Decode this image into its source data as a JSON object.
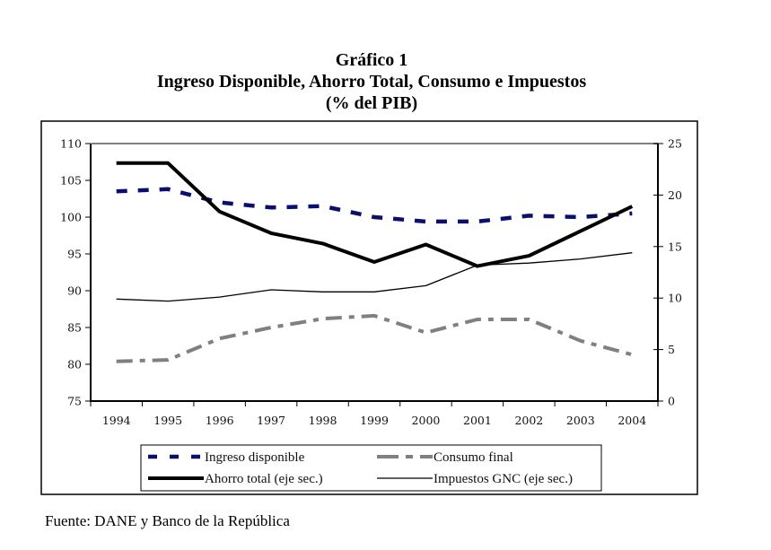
{
  "chart_data": {
    "type": "line",
    "title": "Gráfico 1",
    "subtitle": "Ingreso Disponible, Ahorro Total, Consumo e Impuestos",
    "unit_label": "(% del PIB)",
    "xlabel": "",
    "ylabel": "",
    "categories": [
      "1994",
      "1995",
      "1996",
      "1997",
      "1998",
      "1999",
      "2000",
      "2001",
      "2002",
      "2003",
      "2004"
    ],
    "y_left": {
      "range": [
        75,
        110
      ],
      "ticks": [
        75,
        80,
        85,
        90,
        95,
        100,
        105,
        110
      ]
    },
    "y_right": {
      "range": [
        0,
        25
      ],
      "ticks": [
        0,
        5,
        10,
        15,
        20,
        25
      ]
    },
    "grid": false,
    "legend_position": "bottom",
    "series": [
      {
        "name": "Ingreso disponible",
        "axis": "left",
        "style": "dash",
        "color": "#0b0f6b",
        "values": [
          103.5,
          103.8,
          102.0,
          101.3,
          101.5,
          100.0,
          99.4,
          99.4,
          100.2,
          100.0,
          100.5
        ]
      },
      {
        "name": "Consumo final",
        "axis": "left",
        "style": "dash-dot",
        "color": "#808080",
        "values": [
          80.4,
          80.6,
          83.5,
          85.0,
          86.2,
          86.6,
          84.3,
          86.1,
          86.1,
          83.2,
          81.3
        ]
      },
      {
        "name": "Ahorro total (eje sec.)",
        "axis": "right",
        "style": "thick-solid",
        "color": "#000000",
        "values": [
          23.1,
          23.1,
          18.4,
          16.3,
          15.3,
          13.5,
          15.2,
          13.1,
          14.1,
          16.5,
          18.9
        ]
      },
      {
        "name": "Impuestos GNC (eje sec.)",
        "axis": "right",
        "style": "thin-solid",
        "color": "#000000",
        "values": [
          9.9,
          9.7,
          10.1,
          10.8,
          10.6,
          10.6,
          11.2,
          13.2,
          13.4,
          13.8,
          14.4
        ]
      }
    ]
  },
  "source": "Fuente: DANE y Banco de la República"
}
